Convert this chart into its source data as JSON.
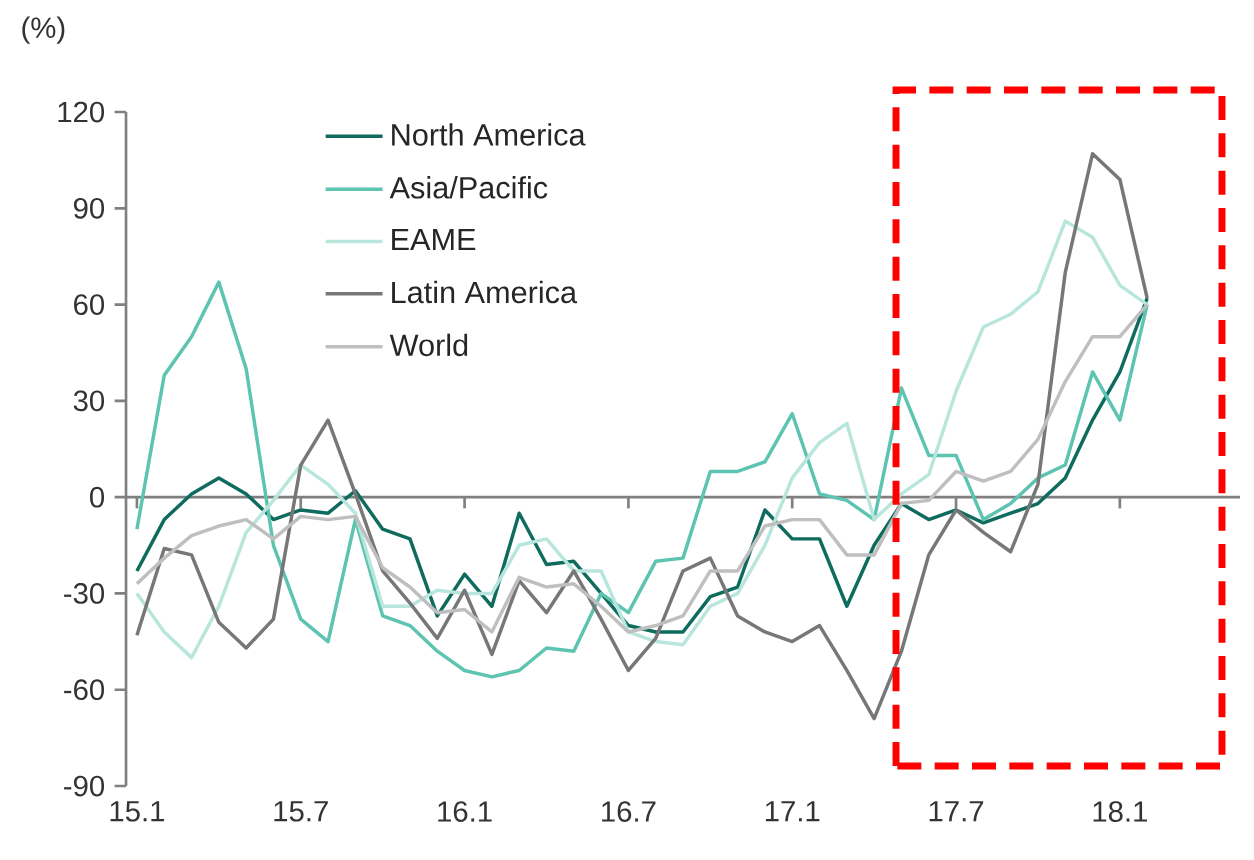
{
  "chart_data": {
    "type": "line",
    "ylabel": "(%)",
    "categories": [
      "15.1",
      null,
      null,
      null,
      null,
      null,
      "15.7",
      null,
      null,
      null,
      null,
      null,
      "16.1",
      null,
      null,
      null,
      null,
      null,
      "16.7",
      null,
      null,
      null,
      null,
      null,
      "17.1",
      null,
      null,
      null,
      null,
      null,
      "17.7",
      null,
      null,
      null,
      null,
      null,
      "18.1",
      null
    ],
    "series": [
      {
        "name": "North America",
        "color": "#0e6b5e",
        "values": [
          -23,
          -7,
          1,
          6,
          1,
          -7,
          -4,
          -5,
          2,
          -10,
          -13,
          -37,
          -24,
          -34,
          -5,
          -21,
          -20,
          -30,
          -40,
          -42,
          -42,
          -31,
          -28,
          -4,
          -13,
          -13,
          -34,
          -15,
          -2,
          -7,
          -4,
          -8,
          -5,
          -2,
          6,
          24,
          39,
          62
        ]
      },
      {
        "name": "Asia/Pacific",
        "color": "#5cc4b0",
        "values": [
          -10,
          38,
          50,
          67,
          40,
          -15,
          -38,
          -45,
          -7,
          -37,
          -40,
          -48,
          -54,
          -56,
          -54,
          -47,
          -48,
          -30,
          -36,
          -20,
          -19,
          8,
          8,
          11,
          26,
          1,
          -1,
          -7,
          34,
          13,
          13,
          -7,
          -2,
          6,
          10,
          39,
          24,
          60
        ]
      },
      {
        "name": "EAME",
        "color": "#b8e6dc",
        "values": [
          -30,
          -42,
          -50,
          -34,
          -11,
          -1,
          10,
          4,
          -5,
          -34,
          -34,
          -29,
          -30,
          -30,
          -15,
          -13,
          -23,
          -23,
          -42,
          -45,
          -46,
          -34,
          -30,
          -15,
          6,
          17,
          23,
          -7,
          1,
          7,
          33,
          53,
          57,
          64,
          86,
          81,
          66,
          60
        ]
      },
      {
        "name": "Latin America",
        "color": "#777777",
        "values": [
          -43,
          -16,
          -18,
          -39,
          -47,
          -38,
          10,
          24,
          1,
          -23,
          -33,
          -44,
          -29,
          -49,
          -26,
          -36,
          -23,
          -38,
          -54,
          -44,
          -23,
          -19,
          -37,
          -42,
          -45,
          -40,
          -54,
          -69,
          -48,
          -18,
          -4,
          -11,
          -17,
          4,
          70,
          107,
          99,
          62
        ]
      },
      {
        "name": "World",
        "color": "#bfbfbf",
        "values": [
          -27,
          -19,
          -12,
          -9,
          -7,
          -13,
          -6,
          -7,
          -6,
          -22,
          -28,
          -36,
          -35,
          -42,
          -25,
          -28,
          -27,
          -34,
          -42,
          -40,
          -37,
          -23,
          -23,
          -9,
          -7,
          -7,
          -18,
          -18,
          -2,
          -1,
          8,
          5,
          8,
          18,
          36,
          50,
          50,
          60
        ]
      }
    ],
    "ylim": [
      -90,
      120
    ],
    "yticks": [
      -90,
      -60,
      -30,
      0,
      30,
      60,
      90,
      120
    ],
    "legend": "top left",
    "marker": "none",
    "line_style": "solid"
  }
}
